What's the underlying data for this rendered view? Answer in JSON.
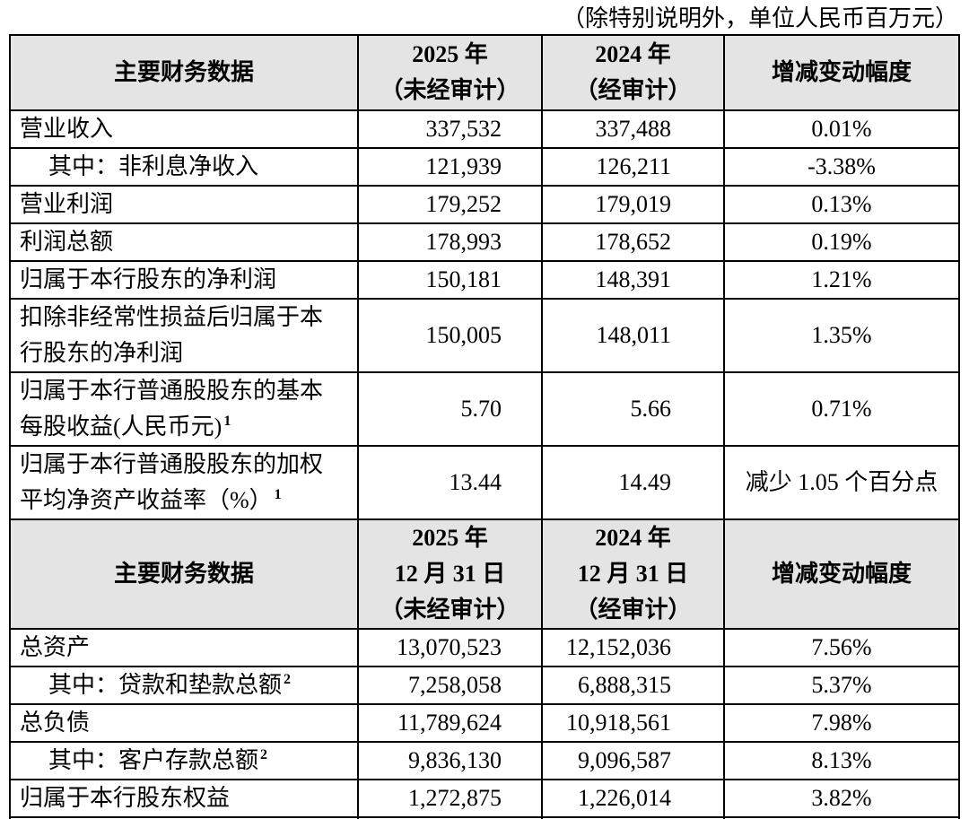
{
  "note": "（除特别说明外，单位人民币百万元）",
  "colors": {
    "header_bg": "#e4e4e4",
    "border": "#000000",
    "text": "#000000",
    "page_bg": "#ffffff"
  },
  "income_section": {
    "header": {
      "metric": "主要财务数据",
      "col_2025": "2025 年\n（未经审计）",
      "col_2024": "2024 年\n（经审计）",
      "change": "增减变动幅度"
    },
    "rows": [
      {
        "label": "营业收入",
        "sup": "",
        "v2025": "337,532",
        "v2024": "337,488",
        "change": "0.01%"
      },
      {
        "label": "其中：非利息净收入",
        "sup": "",
        "v2025": "121,939",
        "v2024": "126,211",
        "change": "-3.38%"
      },
      {
        "label": "营业利润",
        "sup": "",
        "v2025": "179,252",
        "v2024": "179,019",
        "change": "0.13%"
      },
      {
        "label": "利润总额",
        "sup": "",
        "v2025": "178,993",
        "v2024": "178,652",
        "change": "0.19%"
      },
      {
        "label": "归属于本行股东的净利润",
        "sup": "",
        "v2025": "150,181",
        "v2024": "148,391",
        "change": "1.21%"
      },
      {
        "label": "扣除非经常性损益后归属于本\n行股东的净利润",
        "sup": "",
        "v2025": "150,005",
        "v2024": "148,011",
        "change": "1.35%"
      },
      {
        "label": "归属于本行普通股股东的基本\n每股收益(人民币元)",
        "sup": "1",
        "v2025": "5.70",
        "v2024": "5.66",
        "change": "0.71%"
      },
      {
        "label": "归属于本行普通股股东的加权\n平均净资产收益率（%）",
        "sup": "1",
        "v2025": "13.44",
        "v2024": "14.49",
        "change": "减少 1.05 个百分点"
      }
    ]
  },
  "balance_section": {
    "header": {
      "metric": "主要财务数据",
      "col_2025": "2025 年\n12 月 31 日\n（未经审计）",
      "col_2024": "2024 年\n12 月 31 日\n（经审计）",
      "change": "增减变动幅度"
    },
    "rows": [
      {
        "label": "总资产",
        "sup": "",
        "v2025": "13,070,523",
        "v2024": "12,152,036",
        "change": "7.56%"
      },
      {
        "label": "其中：贷款和垫款总额",
        "sup": "2",
        "v2025": "7,258,058",
        "v2024": "6,888,315",
        "change": "5.37%"
      },
      {
        "label": "总负债",
        "sup": "",
        "v2025": "11,789,624",
        "v2024": "10,918,561",
        "change": "7.98%"
      },
      {
        "label": "其中：客户存款总额",
        "sup": "2",
        "v2025": "9,836,130",
        "v2024": "9,096,587",
        "change": "8.13%"
      },
      {
        "label": "归属于本行股东权益",
        "sup": "",
        "v2025": "1,272,875",
        "v2024": "1,226,014",
        "change": "3.82%"
      }
    ]
  }
}
